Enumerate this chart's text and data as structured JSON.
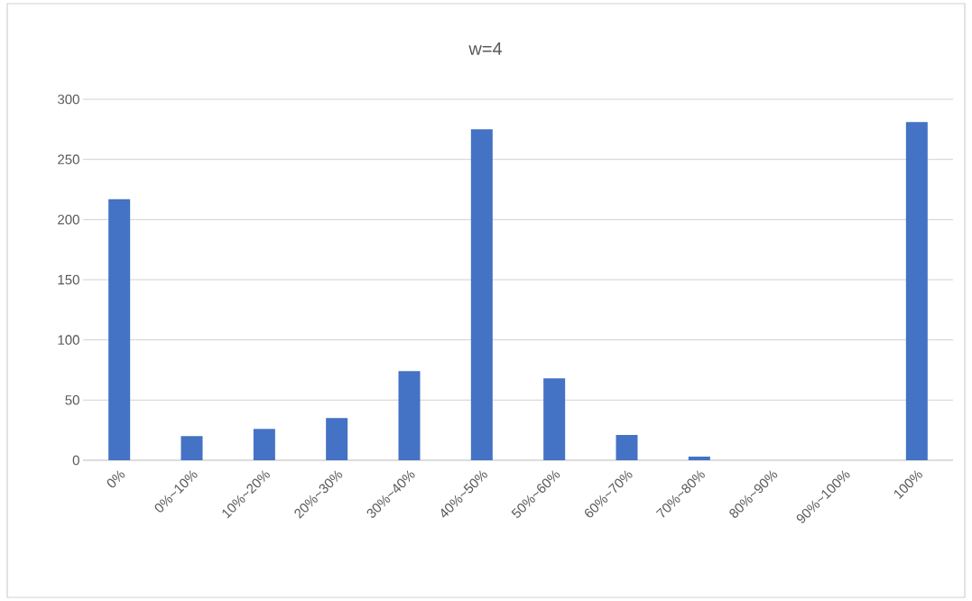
{
  "chart_data": {
    "type": "bar",
    "title": "w=4",
    "categories": [
      "0%",
      "0%~10%",
      "10%~20%",
      "20%~30%",
      "30%~40%",
      "40%~50%",
      "50%~60%",
      "60%~70%",
      "70%~80%",
      "80%~90%",
      "90%~100%",
      "100%"
    ],
    "values": [
      217,
      20,
      26,
      35,
      74,
      275,
      68,
      21,
      3,
      0,
      0,
      281
    ],
    "color": "#4472c4",
    "ylim": [
      0,
      300
    ],
    "yticks": [
      0,
      50,
      100,
      150,
      200,
      250,
      300
    ],
    "grid": "y",
    "legend": false
  }
}
